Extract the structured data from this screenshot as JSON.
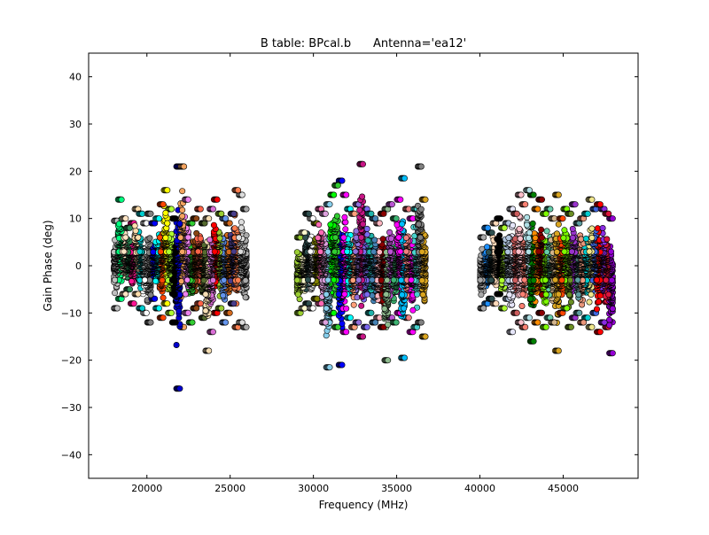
{
  "chart_data": {
    "type": "scatter",
    "title": "B table: BPcal.b      Antenna='ea12'",
    "xlabel": "Frequency (MHz)",
    "ylabel": "Gain Phase (deg)",
    "xlim": [
      16500,
      49500
    ],
    "ylim": [
      -45,
      45
    ],
    "xticks": [
      20000,
      25000,
      30000,
      35000,
      40000,
      45000
    ],
    "yticks": [
      -40,
      -30,
      -20,
      -10,
      0,
      10,
      20,
      30,
      40
    ],
    "grid": false,
    "legend": "none",
    "marker": "circle",
    "frequency_bands": [
      {
        "x_range": [
          18000,
          26000
        ],
        "y_min": -26,
        "y_max": 21
      },
      {
        "x_range": [
          29000,
          37000
        ],
        "y_min": -21.5,
        "y_max": 21.5
      },
      {
        "x_range": [
          40000,
          48000
        ],
        "y_min": -18.5,
        "y_max": 16
      }
    ],
    "spectral_windows": [
      {
        "x_range": [
          18000,
          18250
        ],
        "y_range": [
          -9,
          9.5
        ],
        "color": "#c0c0c0"
      },
      {
        "x_range": [
          18250,
          18500
        ],
        "y_range": [
          -7,
          14
        ],
        "color": "#00ff7f"
      },
      {
        "x_range": [
          18500,
          18750
        ],
        "y_range": [
          -6,
          10
        ],
        "color": "#ffe4c4"
      },
      {
        "x_range": [
          18750,
          19000
        ],
        "y_range": [
          -5,
          8
        ],
        "color": "#2e8b57"
      },
      {
        "x_range": [
          19000,
          19250
        ],
        "y_range": [
          -8,
          9
        ],
        "color": "#ff1493"
      },
      {
        "x_range": [
          19250,
          19500
        ],
        "y_range": [
          -6,
          12
        ],
        "color": "#ffdead"
      },
      {
        "x_range": [
          19500,
          19750
        ],
        "y_range": [
          -9,
          11
        ],
        "color": "#00ced1"
      },
      {
        "x_range": [
          19750,
          20000
        ],
        "y_range": [
          -10,
          9
        ],
        "color": "#ffffff"
      },
      {
        "x_range": [
          20000,
          20250
        ],
        "y_range": [
          -12,
          11
        ],
        "color": "#808080"
      },
      {
        "x_range": [
          20250,
          20500
        ],
        "y_range": [
          -7,
          9
        ],
        "color": "#0000ff"
      },
      {
        "x_range": [
          20500,
          20750
        ],
        "y_range": [
          -9,
          10
        ],
        "color": "#00ffff"
      },
      {
        "x_range": [
          20750,
          21000
        ],
        "y_range": [
          -11,
          13
        ],
        "color": "#ff4500"
      },
      {
        "x_range": [
          21000,
          21250
        ],
        "y_range": [
          -8,
          16
        ],
        "color": "#ffff00"
      },
      {
        "x_range": [
          21250,
          21500
        ],
        "y_range": [
          -10,
          12
        ],
        "color": "#adff2f"
      },
      {
        "x_range": [
          21500,
          21750
        ],
        "y_range": [
          -12,
          10
        ],
        "color": "#000000"
      },
      {
        "x_range": [
          21750,
          22000
        ],
        "y_range": [
          -26,
          21
        ],
        "color": "#0000cd"
      },
      {
        "x_range": [
          22000,
          22250
        ],
        "y_range": [
          -13,
          21
        ],
        "color": "#f4a460"
      },
      {
        "x_range": [
          22250,
          22500
        ],
        "y_range": [
          -10,
          14
        ],
        "color": "#ee82ee"
      },
      {
        "x_range": [
          22500,
          22750
        ],
        "y_range": [
          -12,
          9
        ],
        "color": "#32cd32"
      },
      {
        "x_range": [
          22750,
          23000
        ],
        "y_range": [
          -9,
          10
        ],
        "color": "#8b4513"
      },
      {
        "x_range": [
          23000,
          23250
        ],
        "y_range": [
          -8,
          12
        ],
        "color": "#ff6347"
      },
      {
        "x_range": [
          23250,
          23500
        ],
        "y_range": [
          -11,
          9
        ],
        "color": "#556b2f"
      },
      {
        "x_range": [
          23500,
          23750
        ],
        "y_range": [
          -18,
          10
        ],
        "color": "#f5deb3"
      },
      {
        "x_range": [
          23750,
          24000
        ],
        "y_range": [
          -14,
          12
        ],
        "color": "#da70d6"
      },
      {
        "x_range": [
          24000,
          24250
        ],
        "y_range": [
          -10,
          14
        ],
        "color": "#ff0000"
      },
      {
        "x_range": [
          24250,
          24500
        ],
        "y_range": [
          -9,
          11
        ],
        "color": "#9acd32"
      },
      {
        "x_range": [
          24500,
          24750
        ],
        "y_range": [
          -12,
          10
        ],
        "color": "#6495ed"
      },
      {
        "x_range": [
          24750,
          25000
        ],
        "y_range": [
          -10,
          9
        ],
        "color": "#d2691e"
      },
      {
        "x_range": [
          25000,
          25250
        ],
        "y_range": [
          -8,
          11
        ],
        "color": "#483d8b"
      },
      {
        "x_range": [
          25250,
          25500
        ],
        "y_range": [
          -13,
          16
        ],
        "color": "#ff7f50"
      },
      {
        "x_range": [
          25500,
          25750
        ],
        "y_range": [
          -12,
          15
        ],
        "color": "#dcdcdc"
      },
      {
        "x_range": [
          25750,
          26000
        ],
        "y_range": [
          -13,
          12
        ],
        "color": "#a9a9a9"
      },
      {
        "x_range": [
          29000,
          29250
        ],
        "y_range": [
          -10,
          6
        ],
        "color": "#9acd32"
      },
      {
        "x_range": [
          29250,
          29500
        ],
        "y_range": [
          -9,
          7
        ],
        "color": "#fffacd"
      },
      {
        "x_range": [
          29500,
          29750
        ],
        "y_range": [
          -8,
          11
        ],
        "color": "#2f4f4f"
      },
      {
        "x_range": [
          29750,
          30000
        ],
        "y_range": [
          -9,
          10
        ],
        "color": "#ffffff"
      },
      {
        "x_range": [
          30000,
          30250
        ],
        "y_range": [
          -7,
          9
        ],
        "color": "#808000"
      },
      {
        "x_range": [
          30250,
          30500
        ],
        "y_range": [
          -8,
          12
        ],
        "color": "#ff69b4"
      },
      {
        "x_range": [
          30500,
          30750
        ],
        "y_range": [
          -12,
          11
        ],
        "color": "#dda0dd"
      },
      {
        "x_range": [
          30750,
          31000
        ],
        "y_range": [
          -21.5,
          13
        ],
        "color": "#87ceeb"
      },
      {
        "x_range": [
          31000,
          31250
        ],
        "y_range": [
          -10,
          15
        ],
        "color": "#00ff00"
      },
      {
        "x_range": [
          31250,
          31500
        ],
        "y_range": [
          -13,
          17
        ],
        "color": "#32cd32"
      },
      {
        "x_range": [
          31500,
          31750
        ],
        "y_range": [
          -21,
          18
        ],
        "color": "#0000ff"
      },
      {
        "x_range": [
          31750,
          32000
        ],
        "y_range": [
          -14,
          15
        ],
        "color": "#ff00ff"
      },
      {
        "x_range": [
          32000,
          32250
        ],
        "y_range": [
          -11,
          12
        ],
        "color": "#00ffff"
      },
      {
        "x_range": [
          32250,
          32500
        ],
        "y_range": [
          -13,
          11
        ],
        "color": "#ffa07a"
      },
      {
        "x_range": [
          32500,
          32750
        ],
        "y_range": [
          -12,
          13
        ],
        "color": "#9370db"
      },
      {
        "x_range": [
          32750,
          33000
        ],
        "y_range": [
          -15,
          21.5
        ],
        "color": "#c71585"
      },
      {
        "x_range": [
          33000,
          33250
        ],
        "y_range": [
          -13,
          12
        ],
        "color": "#7b68ee"
      },
      {
        "x_range": [
          33250,
          33500
        ],
        "y_range": [
          -10,
          11
        ],
        "color": "#20b2aa"
      },
      {
        "x_range": [
          33500,
          33750
        ],
        "y_range": [
          -12,
          10
        ],
        "color": "#4682b4"
      },
      {
        "x_range": [
          33750,
          34000
        ],
        "y_range": [
          -11,
          9
        ],
        "color": "#ffb6c1"
      },
      {
        "x_range": [
          34000,
          34250
        ],
        "y_range": [
          -13,
          11
        ],
        "color": "#8b0000"
      },
      {
        "x_range": [
          34250,
          34500
        ],
        "y_range": [
          -20,
          12
        ],
        "color": "#8fbc8f"
      },
      {
        "x_range": [
          34500,
          34750
        ],
        "y_range": [
          -11,
          13
        ],
        "color": "#ba55d3"
      },
      {
        "x_range": [
          34750,
          35000
        ],
        "y_range": [
          -12,
          10
        ],
        "color": "#3cb371"
      },
      {
        "x_range": [
          35000,
          35250
        ],
        "y_range": [
          -10,
          14
        ],
        "color": "#ff00ff"
      },
      {
        "x_range": [
          35250,
          35500
        ],
        "y_range": [
          -19.5,
          18.5
        ],
        "color": "#00bfff"
      },
      {
        "x_range": [
          35500,
          35750
        ],
        "y_range": [
          -11,
          12
        ],
        "color": "#f08080"
      },
      {
        "x_range": [
          35750,
          36000
        ],
        "y_range": [
          -14,
          10
        ],
        "color": "#ff00ff"
      },
      {
        "x_range": [
          36000,
          36250
        ],
        "y_range": [
          -13,
          12
        ],
        "color": "#48d1cc"
      },
      {
        "x_range": [
          36250,
          36500
        ],
        "y_range": [
          -12,
          21
        ],
        "color": "#808080"
      },
      {
        "x_range": [
          36500,
          36750
        ],
        "y_range": [
          -15,
          14
        ],
        "color": "#daa520"
      },
      {
        "x_range": [
          40000,
          40250
        ],
        "y_range": [
          -9,
          6
        ],
        "color": "#a9a9a9"
      },
      {
        "x_range": [
          40250,
          40500
        ],
        "y_range": [
          -8,
          8
        ],
        "color": "#1e90ff"
      },
      {
        "x_range": [
          40500,
          40750
        ],
        "y_range": [
          -7,
          7
        ],
        "color": "#2f4f4f"
      },
      {
        "x_range": [
          40750,
          41000
        ],
        "y_range": [
          -8,
          9
        ],
        "color": "#ffdab9"
      },
      {
        "x_range": [
          41000,
          41250
        ],
        "y_range": [
          -6,
          10
        ],
        "color": "#000000"
      },
      {
        "x_range": [
          41250,
          41500
        ],
        "y_range": [
          -9,
          8
        ],
        "color": "#adff2f"
      },
      {
        "x_range": [
          41500,
          41750
        ],
        "y_range": [
          -7,
          9
        ],
        "color": "#b0c4de"
      },
      {
        "x_range": [
          41750,
          42000
        ],
        "y_range": [
          -14,
          12
        ],
        "color": "#e6e6fa"
      },
      {
        "x_range": [
          42000,
          42250
        ],
        "y_range": [
          -10,
          11
        ],
        "color": "#cd5c5c"
      },
      {
        "x_range": [
          42250,
          42500
        ],
        "y_range": [
          -12,
          15
        ],
        "color": "#ffc0cb"
      },
      {
        "x_range": [
          42500,
          42750
        ],
        "y_range": [
          -13,
          13
        ],
        "color": "#fa8072"
      },
      {
        "x_range": [
          42750,
          43000
        ],
        "y_range": [
          -11,
          16
        ],
        "color": "#b0e0e6"
      },
      {
        "x_range": [
          43000,
          43250
        ],
        "y_range": [
          -16,
          15
        ],
        "color": "#008000"
      },
      {
        "x_range": [
          43250,
          43500
        ],
        "y_range": [
          -12,
          12
        ],
        "color": "#ff8c00"
      },
      {
        "x_range": [
          43500,
          43750
        ],
        "y_range": [
          -10,
          14
        ],
        "color": "#8b0000"
      },
      {
        "x_range": [
          43750,
          44000
        ],
        "y_range": [
          -13,
          11
        ],
        "color": "#7fff00"
      },
      {
        "x_range": [
          44000,
          44250
        ],
        "y_range": [
          -11,
          12
        ],
        "color": "#66cdaa"
      },
      {
        "x_range": [
          44250,
          44500
        ],
        "y_range": [
          -12,
          10
        ],
        "color": "#d2b48c"
      },
      {
        "x_range": [
          44500,
          44750
        ],
        "y_range": [
          -18,
          15
        ],
        "color": "#daa520"
      },
      {
        "x_range": [
          44750,
          45000
        ],
        "y_range": [
          -10,
          10
        ],
        "color": "#ff4500"
      },
      {
        "x_range": [
          45000,
          45250
        ],
        "y_range": [
          -9,
          12
        ],
        "color": "#7cfc00"
      },
      {
        "x_range": [
          45250,
          45500
        ],
        "y_range": [
          -13,
          11
        ],
        "color": "#6b8e23"
      },
      {
        "x_range": [
          45500,
          45750
        ],
        "y_range": [
          -11,
          13
        ],
        "color": "#9932cc"
      },
      {
        "x_range": [
          45750,
          46000
        ],
        "y_range": [
          -10,
          9
        ],
        "color": "#5f9ea0"
      },
      {
        "x_range": [
          46000,
          46250
        ],
        "y_range": [
          -12,
          10
        ],
        "color": "#e9967a"
      },
      {
        "x_range": [
          46250,
          46500
        ],
        "y_range": [
          -11,
          11
        ],
        "color": "#00ced1"
      },
      {
        "x_range": [
          46500,
          46750
        ],
        "y_range": [
          -13,
          14
        ],
        "color": "#f0e68c"
      },
      {
        "x_range": [
          46750,
          47000
        ],
        "y_range": [
          -10,
          12
        ],
        "color": "#4169e1"
      },
      {
        "x_range": [
          47000,
          47250
        ],
        "y_range": [
          -14,
          13
        ],
        "color": "#ff0000"
      },
      {
        "x_range": [
          47250,
          47500
        ],
        "y_range": [
          -12,
          12
        ],
        "color": "#8a2be2"
      },
      {
        "x_range": [
          47500,
          47750
        ],
        "y_range": [
          -13,
          11
        ],
        "color": "#dc143c"
      },
      {
        "x_range": [
          47750,
          48000
        ],
        "y_range": [
          -18.5,
          10
        ],
        "color": "#9400d3"
      }
    ]
  }
}
